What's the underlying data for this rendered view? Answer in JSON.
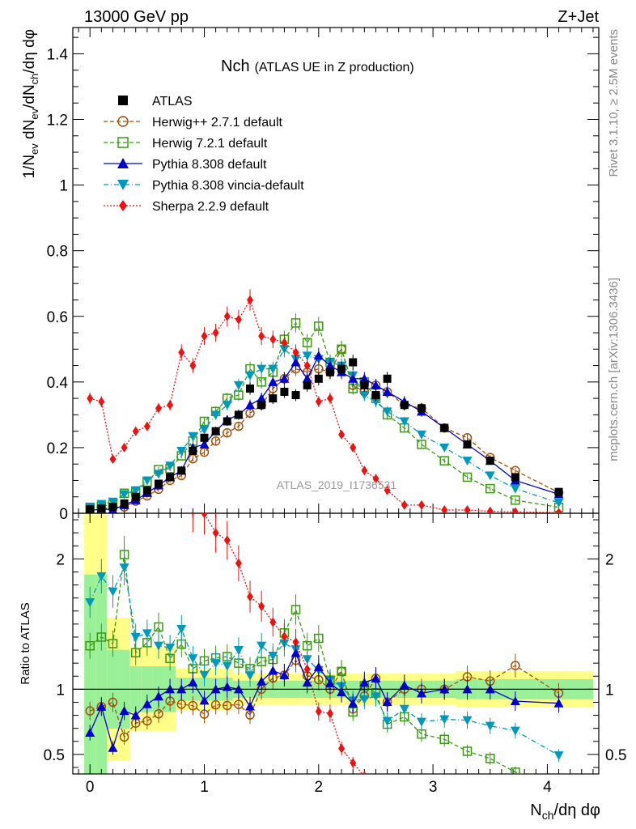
{
  "header": {
    "left": "13000 GeV pp",
    "right": "Z+Jet"
  },
  "side_labels": {
    "rivet": "Rivet 3.1.10, ≥ 2.5M events",
    "mcplots": "mcplots.cern.ch [arXiv:1306.3436]"
  },
  "chart_data": {
    "type": "scatter",
    "title_main": "Nch",
    "title_sub": "(ATLAS UE in Z production)",
    "watermark": "ATLAS_2019_I1736531",
    "xlabel": "N_ch/dη dφ",
    "ylabel": "1/N_ev dN_ev/dN_ch/dη dφ",
    "ratio_ylabel": "Ratio to ATLAS",
    "xlim": [
      -0.15,
      4.45
    ],
    "ylim": [
      0,
      1.48
    ],
    "ratio_ylim": [
      0.35,
      2.35
    ],
    "x_ticks": [
      "0",
      "1",
      "2",
      "3",
      "4"
    ],
    "y_ticks": [
      "0",
      "0.2",
      "0.4",
      "0.6",
      "0.8",
      "1",
      "1.2",
      "1.4"
    ],
    "ratio_ticks": [
      "0.5",
      "1",
      "2"
    ],
    "legend": [
      "ATLAS",
      "Herwig++ 2.7.1 default",
      "Herwig 7.2.1 default",
      "Pythia 8.308 default",
      "Pythia 8.308 vincia-default",
      "Sherpa 2.2.9 default"
    ],
    "x": [
      0.0,
      0.1,
      0.2,
      0.3,
      0.4,
      0.5,
      0.6,
      0.7,
      0.8,
      0.9,
      1.0,
      1.1,
      1.2,
      1.3,
      1.4,
      1.5,
      1.6,
      1.7,
      1.8,
      1.9,
      2.0,
      2.1,
      2.2,
      2.3,
      2.4,
      2.5,
      2.6,
      2.75,
      2.9,
      3.1,
      3.3,
      3.5,
      3.72,
      4.1
    ],
    "series": [
      {
        "name": "ATLAS",
        "color": "#000000",
        "marker": "square-filled",
        "dash": "",
        "values": [
          0.012,
          0.015,
          0.02,
          0.03,
          0.05,
          0.07,
          0.09,
          0.11,
          0.13,
          0.19,
          0.23,
          0.25,
          0.28,
          0.3,
          0.38,
          0.33,
          0.35,
          0.37,
          0.36,
          0.39,
          0.41,
          0.43,
          0.44,
          0.46,
          0.39,
          0.36,
          0.41,
          0.33,
          0.32,
          0.26,
          0.21,
          0.16,
          0.11,
          0.065
        ]
      },
      {
        "name": "Herwig++ 2.7.1 default",
        "color": "#a0500a",
        "marker": "circle-open",
        "dash": "5,3",
        "values": [
          0.01,
          0.013,
          0.018,
          0.019,
          0.037,
          0.053,
          0.073,
          0.1,
          0.115,
          0.166,
          0.186,
          0.22,
          0.245,
          0.265,
          0.305,
          0.33,
          0.38,
          0.41,
          0.44,
          0.43,
          0.44,
          0.43,
          0.5,
          0.39,
          0.37,
          0.39,
          0.37,
          0.33,
          0.32,
          0.26,
          0.23,
          0.17,
          0.13,
          0.063
        ]
      },
      {
        "name": "Herwig 7.2.1 default",
        "color": "#3a9a10",
        "marker": "square-open",
        "dash": "5,3",
        "values": [
          0.016,
          0.021,
          0.027,
          0.061,
          0.064,
          0.095,
          0.133,
          0.136,
          0.175,
          0.22,
          0.28,
          0.31,
          0.35,
          0.36,
          0.44,
          0.4,
          0.43,
          0.53,
          0.58,
          0.52,
          0.57,
          0.46,
          0.5,
          0.38,
          0.4,
          0.35,
          0.3,
          0.26,
          0.21,
          0.16,
          0.11,
          0.075,
          0.04,
          0.018
        ]
      },
      {
        "name": "Pythia 8.308 default",
        "color": "#0000cc",
        "marker": "triangle-up-filled",
        "dash": "",
        "values": [
          0.008,
          0.013,
          0.011,
          0.025,
          0.04,
          0.062,
          0.085,
          0.11,
          0.13,
          0.2,
          0.21,
          0.25,
          0.285,
          0.3,
          0.33,
          0.35,
          0.4,
          0.41,
          0.46,
          0.41,
          0.48,
          0.45,
          0.43,
          0.41,
          0.41,
          0.39,
          0.37,
          0.34,
          0.31,
          0.26,
          0.21,
          0.16,
          0.1,
          0.058
        ]
      },
      {
        "name": "Pythia 8.308 vincia-default",
        "color": "#0099bb",
        "marker": "triangle-down-filled",
        "dash": "6,3,1,3",
        "values": [
          0.02,
          0.028,
          0.035,
          0.058,
          0.07,
          0.1,
          0.12,
          0.145,
          0.19,
          0.235,
          0.255,
          0.3,
          0.33,
          0.39,
          0.42,
          0.44,
          0.44,
          0.5,
          0.47,
          0.48,
          0.47,
          0.46,
          0.45,
          0.42,
          0.36,
          0.34,
          0.31,
          0.28,
          0.24,
          0.2,
          0.16,
          0.115,
          0.075,
          0.032
        ]
      },
      {
        "name": "Sherpa 2.2.9 default",
        "color": "#ee1111",
        "marker": "diamond-filled",
        "dash": "2,2",
        "values": [
          0.35,
          0.34,
          0.165,
          0.2,
          0.25,
          0.265,
          0.32,
          0.33,
          0.49,
          0.45,
          0.54,
          0.55,
          0.6,
          0.59,
          0.65,
          0.54,
          0.53,
          0.52,
          0.49,
          0.45,
          0.34,
          0.35,
          0.24,
          0.2,
          0.13,
          0.105,
          0.07,
          0.025,
          0.025,
          0.01,
          0.01,
          0.006,
          0.004,
          0.002
        ]
      }
    ]
  }
}
